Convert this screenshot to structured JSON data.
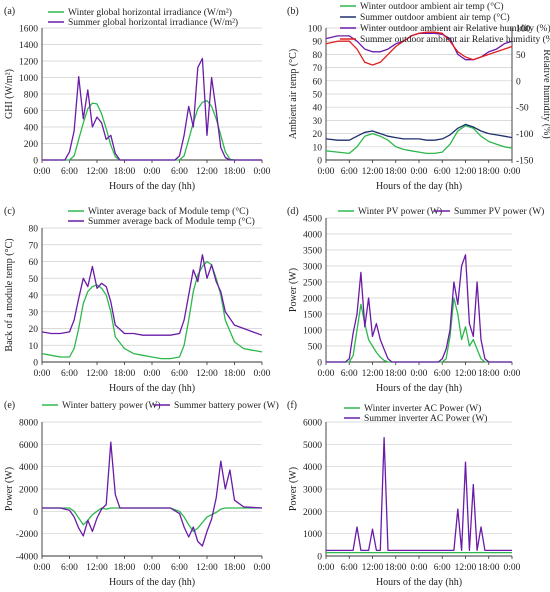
{
  "colors": {
    "winter": "#2db84d",
    "summer": "#6a1ba8",
    "humid_winter": "#6a1ba8",
    "humid_summer": "#e02020",
    "temp_summer": "#1f2f6e",
    "grid": "#cfcfcf",
    "axis": "#333333"
  },
  "chart_data": [
    {
      "panel_label": "(a)",
      "type": "line",
      "ylabel": "GHI (W/m²)",
      "xlabel": "Hours of the day (hh)",
      "xticks": [
        "0:00",
        "6:00",
        "12:00",
        "18:00",
        "0:00",
        "6:00",
        "12:00",
        "18:00",
        "0:00"
      ],
      "ylim": [
        0,
        1600
      ],
      "yticks": [
        0,
        200,
        400,
        600,
        800,
        1000,
        1200,
        1400,
        1600
      ],
      "grid": true,
      "legend_position": "top-left",
      "x_hours": [
        0,
        4,
        5,
        6,
        7,
        8,
        9,
        10,
        11,
        12,
        13,
        14,
        15,
        16,
        17,
        18,
        19,
        24,
        28,
        29,
        30,
        31,
        32,
        33,
        34,
        35,
        36,
        37,
        38,
        39,
        40,
        41,
        42,
        43,
        48
      ],
      "series": [
        {
          "name": "Winter global horizontal irradiance (W/m²)",
          "color": "winter",
          "values": [
            0,
            0,
            0,
            0,
            50,
            250,
            450,
            620,
            690,
            680,
            560,
            380,
            180,
            40,
            0,
            0,
            0,
            0,
            0,
            0,
            0,
            50,
            250,
            450,
            620,
            700,
            720,
            650,
            500,
            300,
            100,
            10,
            0,
            0,
            0
          ]
        },
        {
          "name": "Summer global horizontal irradiance (W/m²)",
          "color": "summer",
          "values": [
            0,
            0,
            0,
            100,
            350,
            1010,
            500,
            850,
            400,
            520,
            450,
            250,
            300,
            80,
            0,
            0,
            0,
            0,
            0,
            0,
            50,
            300,
            650,
            400,
            1120,
            1230,
            300,
            1000,
            600,
            150,
            30,
            0,
            0,
            0,
            0
          ]
        }
      ]
    },
    {
      "panel_label": "(b)",
      "type": "line",
      "ylabel": "Ambient air temp (°C)",
      "ylabel_right": "Relative humidity (%)",
      "xlabel": "Hours of the day (hh)",
      "xticks": [
        "0:00",
        "6:00",
        "12:00",
        "18:00",
        "0:00",
        "6:00",
        "12:00",
        "18:00",
        "0:00"
      ],
      "ylim": [
        0,
        100
      ],
      "yticks": [
        0,
        10,
        20,
        30,
        40,
        50,
        60,
        70,
        80,
        90,
        100
      ],
      "ylim_right": [
        -150,
        100
      ],
      "yticks_right": [
        -150,
        -100,
        -50,
        0,
        50,
        100
      ],
      "grid": true,
      "legend_position": "top",
      "x_hours": [
        0,
        3,
        6,
        8,
        10,
        12,
        14,
        16,
        18,
        20,
        22,
        24,
        26,
        28,
        30,
        32,
        34,
        36,
        38,
        40,
        42,
        44,
        46,
        48
      ],
      "series": [
        {
          "name": "Winter outdoor ambient air temp (°C)",
          "color": "winter",
          "axis": "left",
          "values": [
            7,
            6,
            5,
            10,
            18,
            20,
            18,
            15,
            10,
            8,
            7,
            6,
            5,
            5,
            6,
            12,
            22,
            26,
            24,
            18,
            14,
            12,
            10,
            9
          ]
        },
        {
          "name": "Summer outdoor ambient air temp (°C)",
          "color": "temp_summer",
          "axis": "left",
          "values": [
            16,
            15,
            15,
            18,
            21,
            22,
            20,
            18,
            17,
            16,
            16,
            16,
            15,
            15,
            16,
            19,
            24,
            27,
            25,
            22,
            20,
            19,
            18,
            17
          ]
        },
        {
          "name": "Winter outdoor ambient air Relative humidity (%)",
          "color": "humid_winter",
          "axis": "right",
          "values": [
            80,
            85,
            85,
            75,
            60,
            55,
            55,
            60,
            70,
            75,
            85,
            90,
            90,
            90,
            88,
            80,
            50,
            40,
            40,
            45,
            55,
            60,
            70,
            75
          ]
        },
        {
          "name": "Summer outdoor ambient air Relative humidity (%)",
          "color": "humid_summer",
          "axis": "right",
          "values": [
            70,
            75,
            75,
            60,
            35,
            30,
            35,
            50,
            65,
            75,
            85,
            90,
            92,
            92,
            90,
            75,
            55,
            45,
            40,
            45,
            50,
            55,
            60,
            65
          ]
        }
      ]
    },
    {
      "panel_label": "(c)",
      "type": "line",
      "ylabel": "Back of a module temp (°C)",
      "xlabel": "Hours of the day  (hh)",
      "xticks": [
        "0:00",
        "6:00",
        "12:00",
        "18:00",
        "0:00",
        "6:00",
        "12:00",
        "18:00",
        "0:00"
      ],
      "ylim": [
        0,
        80
      ],
      "yticks": [
        0,
        10,
        20,
        30,
        40,
        50,
        60,
        70,
        80
      ],
      "grid": true,
      "legend_position": "top",
      "x_hours": [
        0,
        2,
        4,
        6,
        7,
        8,
        9,
        10,
        11,
        12,
        13,
        14,
        15,
        16,
        18,
        20,
        22,
        24,
        26,
        28,
        30,
        31,
        32,
        33,
        34,
        35,
        36,
        37,
        38,
        39,
        40,
        42,
        44,
        46,
        48
      ],
      "series": [
        {
          "name": "Winter average back of Module temp (°C)",
          "color": "winter",
          "values": [
            5,
            4,
            3,
            3,
            8,
            20,
            35,
            42,
            45,
            46,
            44,
            40,
            30,
            15,
            8,
            5,
            4,
            3,
            2,
            2,
            3,
            10,
            25,
            42,
            52,
            57,
            60,
            58,
            50,
            40,
            25,
            12,
            8,
            7,
            6
          ]
        },
        {
          "name": "Summer average back of Module temp (°C)",
          "color": "summer",
          "values": [
            18,
            17,
            17,
            18,
            25,
            38,
            50,
            45,
            57,
            44,
            47,
            45,
            36,
            22,
            17,
            17,
            16,
            16,
            16,
            16,
            17,
            25,
            40,
            55,
            48,
            64,
            50,
            58,
            48,
            42,
            30,
            22,
            20,
            18,
            16
          ]
        }
      ]
    },
    {
      "panel_label": "(d)",
      "type": "line",
      "ylabel": "Power (W)",
      "xlabel": "Hours of the day (hh)",
      "xticks": [
        "0:00",
        "6:00",
        "12:00",
        "18:00",
        "0:00",
        "6:00",
        "12:00",
        "18:00",
        "0:00"
      ],
      "ylim": [
        0,
        4500
      ],
      "yticks": [
        0,
        500,
        1000,
        1500,
        2000,
        2500,
        3000,
        3500,
        4000,
        4500
      ],
      "grid": true,
      "legend_position": "top",
      "x_hours": [
        0,
        5,
        6,
        7,
        8,
        9,
        10,
        11,
        12,
        13,
        14,
        15,
        16,
        17,
        18,
        24,
        29,
        30,
        31,
        32,
        33,
        34,
        35,
        36,
        37,
        38,
        39,
        40,
        41,
        42,
        48
      ],
      "series": [
        {
          "name": "Winter PV power (W)",
          "color": "winter",
          "values": [
            0,
            0,
            0,
            200,
            1000,
            1800,
            1200,
            700,
            500,
            300,
            150,
            50,
            0,
            0,
            0,
            0,
            0,
            0,
            100,
            800,
            2000,
            1500,
            700,
            1100,
            500,
            700,
            400,
            100,
            0,
            0,
            0
          ]
        },
        {
          "name": "Summer PV power (W)",
          "color": "summer",
          "values": [
            0,
            0,
            100,
            900,
            1500,
            2800,
            1100,
            2000,
            800,
            1200,
            700,
            400,
            100,
            0,
            0,
            0,
            0,
            100,
            400,
            1000,
            2500,
            1800,
            3000,
            3350,
            1200,
            800,
            2500,
            700,
            100,
            0,
            0
          ]
        }
      ]
    },
    {
      "panel_label": "(e)",
      "type": "line",
      "ylabel": "Power (W)",
      "xlabel": "Hours of the day  (hh)",
      "xticks": [
        "0:00",
        "6:00",
        "12:00",
        "18:00",
        "0:00",
        "6:00",
        "12:00",
        "18:00",
        "0:00"
      ],
      "ylim": [
        -4000,
        8000
      ],
      "yticks": [
        -4000,
        -2000,
        0,
        2000,
        4000,
        6000,
        8000
      ],
      "grid": true,
      "legend_position": "top",
      "x_hours": [
        0,
        4,
        6,
        7,
        8,
        9,
        10,
        11,
        12,
        13,
        14,
        15,
        16,
        17,
        18,
        19,
        20,
        24,
        28,
        30,
        31,
        32,
        33,
        34,
        35,
        36,
        37,
        38,
        39,
        40,
        41,
        42,
        44,
        48
      ],
      "series": [
        {
          "name": "Winter battery power (W)",
          "color": "winter",
          "values": [
            300,
            300,
            300,
            0,
            -600,
            -1200,
            -800,
            -300,
            0,
            300,
            200,
            300,
            300,
            300,
            300,
            300,
            300,
            300,
            300,
            0,
            -500,
            -1200,
            -1800,
            -1500,
            -1000,
            -500,
            -300,
            -100,
            200,
            300,
            300,
            300,
            300,
            300
          ]
        },
        {
          "name": "Summer battery power (W)",
          "color": "summer",
          "values": [
            300,
            300,
            100,
            -500,
            -1500,
            -2200,
            -800,
            -1800,
            -600,
            200,
            600,
            6200,
            1500,
            300,
            300,
            300,
            300,
            300,
            300,
            -200,
            -1400,
            -2300,
            -1400,
            -2700,
            -3100,
            -1800,
            -700,
            1200,
            4500,
            2000,
            3700,
            1000,
            400,
            300
          ]
        }
      ]
    },
    {
      "panel_label": "(f)",
      "type": "line",
      "ylabel": "Power (W)",
      "xlabel": "Hours of the day  (hh)",
      "xticks": [
        "0:00",
        "6:00",
        "12:00",
        "18:00",
        "0:00",
        "6:00",
        "12:00",
        "18:00",
        "0:00"
      ],
      "ylim": [
        0,
        6000
      ],
      "yticks": [
        0,
        1000,
        2000,
        3000,
        4000,
        5000,
        6000
      ],
      "grid": true,
      "legend_position": "top",
      "x_hours": [
        0,
        6,
        7,
        8,
        9,
        10,
        11,
        12,
        13,
        14,
        15,
        16,
        17,
        18,
        19,
        24,
        30,
        31,
        32,
        33,
        34,
        35,
        36,
        37,
        38,
        39,
        40,
        41,
        42,
        48
      ],
      "series": [
        {
          "name": "Winter inverter AC Power (W)",
          "color": "winter",
          "values": [
            150,
            150,
            150,
            150,
            150,
            150,
            150,
            150,
            150,
            150,
            150,
            150,
            150,
            150,
            150,
            150,
            150,
            150,
            150,
            150,
            150,
            150,
            150,
            150,
            150,
            150,
            150,
            150,
            150,
            150
          ]
        },
        {
          "name": "Summer inverter AC Power (W)",
          "color": "summer",
          "values": [
            250,
            250,
            250,
            1300,
            250,
            250,
            250,
            1200,
            250,
            250,
            5300,
            250,
            250,
            250,
            250,
            250,
            250,
            250,
            250,
            250,
            2100,
            250,
            4200,
            250,
            3200,
            250,
            1300,
            250,
            250,
            250
          ]
        }
      ]
    }
  ]
}
